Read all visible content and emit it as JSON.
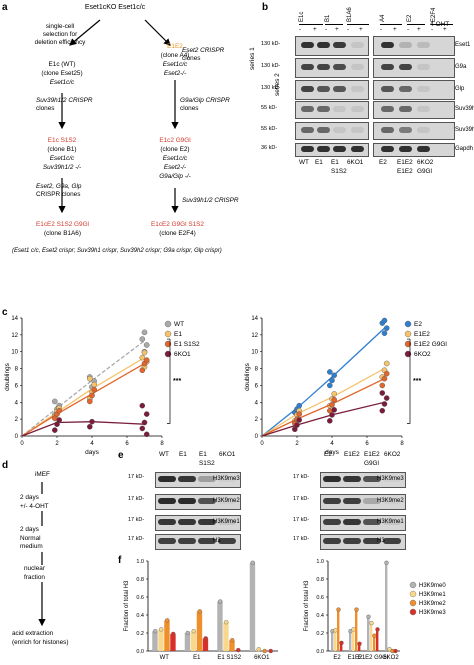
{
  "panels": {
    "a": "a",
    "b": "b",
    "c": "c",
    "d": "d",
    "e": "e",
    "f": "f"
  },
  "a": {
    "top_left": "Eset1cKO Eset1c/c",
    "single_cell": [
      "single-cell",
      "selection for",
      "deletion efficiency"
    ],
    "e1c": [
      "E1c (WT)",
      "(clone Eset25)",
      "Eset1c/c"
    ],
    "suv_crispr_1": [
      "Suv39h1/2 CRISPR",
      "clones"
    ],
    "e1c_s1s2": "E1c S1S2",
    "clone_b1": [
      "(clone B1)",
      "Eset1c/c",
      "Suv39h1/2 -/-"
    ],
    "eset2_crispr": [
      "Eset2, G9a, Glp",
      "CRISPR clones"
    ],
    "e1ce2s1s2g9gl_left": "E1cE2 S1S2 G9Gl",
    "clone_b1a6": "(clone B1A6)",
    "eset2_crispr_top": [
      "Eset2 CRISPR",
      "clones"
    ],
    "e1e2": "E1E2",
    "clone_a4": [
      "(clone A4)",
      "Eset1c/c",
      "Eset2-/-"
    ],
    "g9a_crispr": [
      "G9a/Glp CRISPR",
      "clones"
    ],
    "e1ce2_g9gl": "E1c2 G9Gl",
    "clone_e2": [
      "(clone E2)",
      "Eset1c/c",
      "Eset2-/-",
      "G9a/Glp -/-"
    ],
    "suv_crispr_2": "Suv39h1/2 CRISPR",
    "e1ce2g9gls1s2_right": "E1cE2 G9Gl S1S2",
    "clone_e2f4": "(clone E2F4)",
    "footer": "(Eset1 c/c, Eset2 crispr; Suv39h1 crispr, Suv39h2 crispr; G9a crispr, Glp crispr)",
    "series1": "series 1",
    "series2": "series 2"
  },
  "b": {
    "clone_headers": [
      "E1c",
      "B1",
      "B1A6",
      "A4",
      "E2",
      "E2F4"
    ],
    "oht_label": "4-OHT",
    "oht_marks": [
      "-",
      "+",
      "-",
      "+",
      "-",
      "+",
      "-",
      "+",
      "-",
      "+",
      "-",
      "+"
    ],
    "kd": [
      "130 kD-",
      "130 kD-",
      "130 kD-",
      "55 kD-",
      "55 kD-",
      "36 kD-"
    ],
    "proteins": [
      "Eset1",
      "G9a",
      "Glp",
      "Suv39h1",
      "Suv39h2",
      "Gapdh"
    ],
    "lanes_top": [
      "WT",
      "E1",
      "E1",
      "6KO1",
      "E2",
      "E1E2",
      "6KO2"
    ],
    "lanes_bottom": [
      "",
      "",
      "S1S2",
      "",
      "",
      "E1E2",
      "G9Gl"
    ]
  },
  "c": {
    "chart_data": [
      {
        "type": "scatter",
        "xlabel": "days",
        "ylabel": "doublings",
        "xlim": [
          0,
          8
        ],
        "ylim": [
          0,
          14
        ],
        "xticks": [
          0,
          2,
          4,
          6,
          8
        ],
        "yticks": [
          0,
          2,
          4,
          6,
          8,
          10,
          12,
          14
        ],
        "significance": "***",
        "series": [
          {
            "name": "WT",
            "color": "#aaaaaa",
            "dashed": true,
            "x": [
              0,
              2,
              4,
              7
            ],
            "mean": [
              0,
              3.3,
              6.6,
              11.3
            ],
            "points": [
              [
                2,
                2.5
              ],
              [
                2,
                3.2
              ],
              [
                2,
                3.6
              ],
              [
                2,
                4.1
              ],
              [
                4,
                5.8
              ],
              [
                4,
                6.5
              ],
              [
                4,
                7.0
              ],
              [
                7,
                10.0
              ],
              [
                7,
                10.8
              ],
              [
                7,
                11.5
              ],
              [
                7,
                12.3
              ]
            ]
          },
          {
            "name": "E1",
            "color": "#f6c36b",
            "dashed": false,
            "x": [
              0,
              2,
              4,
              7
            ],
            "mean": [
              0,
              2.8,
              5.6,
              9.3
            ],
            "points": [
              [
                2,
                2.3
              ],
              [
                2,
                2.9
              ],
              [
                2,
                3.3
              ],
              [
                4,
                4.4
              ],
              [
                4,
                5.2
              ],
              [
                4,
                6.1
              ],
              [
                4,
                6.8
              ],
              [
                7,
                8.2
              ],
              [
                7,
                8.8
              ],
              [
                7,
                9.3
              ],
              [
                7,
                9.9
              ]
            ]
          },
          {
            "name": "E1 S1S2",
            "color": "#e2662c",
            "dashed": false,
            "x": [
              0,
              2,
              4,
              7
            ],
            "mean": [
              0,
              2.6,
              5.0,
              8.6
            ],
            "points": [
              [
                2,
                2.1
              ],
              [
                2,
                2.6
              ],
              [
                2,
                3.0
              ],
              [
                4,
                4.1
              ],
              [
                4,
                4.8
              ],
              [
                4,
                5.5
              ],
              [
                7,
                7.8
              ],
              [
                7,
                8.6
              ],
              [
                7,
                9.0
              ]
            ]
          },
          {
            "name": "6KO1",
            "color": "#7a1c3a",
            "dashed": false,
            "x": [
              0,
              2,
              4,
              7
            ],
            "mean": [
              0,
              1.6,
              1.7,
              1.4
            ],
            "points": [
              [
                2,
                0.7
              ],
              [
                2,
                1.4
              ],
              [
                2,
                1.9
              ],
              [
                4,
                1.1
              ],
              [
                4,
                1.7
              ],
              [
                7,
                0.2
              ],
              [
                7,
                0.9
              ],
              [
                7,
                1.6
              ],
              [
                7,
                2.6
              ],
              [
                7,
                3.6
              ]
            ]
          }
        ]
      },
      {
        "type": "scatter",
        "xlabel": "days",
        "ylabel": "doublings",
        "xlim": [
          0,
          8
        ],
        "ylim": [
          0,
          14
        ],
        "xticks": [
          0,
          2,
          4,
          6,
          8
        ],
        "yticks": [
          0,
          2,
          4,
          6,
          8,
          10,
          12,
          14
        ],
        "significance": "***",
        "series": [
          {
            "name": "E2",
            "color": "#2f7fcf",
            "dashed": false,
            "x": [
              0,
              2,
              4,
              7
            ],
            "mean": [
              0,
              3.3,
              7.0,
              12.8
            ],
            "points": [
              [
                2,
                2.8
              ],
              [
                2,
                3.2
              ],
              [
                2,
                3.6
              ],
              [
                4,
                6.0
              ],
              [
                4,
                6.6
              ],
              [
                4,
                7.2
              ],
              [
                4,
                7.6
              ],
              [
                7,
                12.2
              ],
              [
                7,
                12.8
              ],
              [
                7,
                13.4
              ],
              [
                7,
                13.7
              ]
            ]
          },
          {
            "name": "E1E2",
            "color": "#f6c36b",
            "dashed": false,
            "x": [
              0,
              2,
              4,
              7
            ],
            "mean": [
              0,
              2.6,
              4.6,
              8.0
            ],
            "points": [
              [
                2,
                1.8
              ],
              [
                2,
                2.5
              ],
              [
                2,
                3.0
              ],
              [
                4,
                3.6
              ],
              [
                4,
                4.4
              ],
              [
                4,
                5.0
              ],
              [
                7,
                7.0
              ],
              [
                7,
                7.8
              ],
              [
                7,
                8.6
              ]
            ]
          },
          {
            "name": "E1E2 G9Gl",
            "color": "#e2662c",
            "dashed": false,
            "x": [
              0,
              2,
              4,
              7
            ],
            "mean": [
              0,
              2.0,
              3.8,
              6.8
            ],
            "points": [
              [
                2,
                1.5
              ],
              [
                2,
                2.0
              ],
              [
                2,
                2.6
              ],
              [
                4,
                3.0
              ],
              [
                4,
                3.7
              ],
              [
                4,
                4.3
              ],
              [
                7,
                6.0
              ],
              [
                7,
                6.8
              ],
              [
                7,
                7.4
              ]
            ]
          },
          {
            "name": "6KO2",
            "color": "#7a1c3a",
            "dashed": false,
            "x": [
              0,
              2,
              4,
              7
            ],
            "mean": [
              0,
              1.3,
              2.5,
              4.0
            ],
            "points": [
              [
                2,
                0.8
              ],
              [
                2,
                1.3
              ],
              [
                2,
                1.9
              ],
              [
                4,
                1.8
              ],
              [
                4,
                2.5
              ],
              [
                4,
                3.1
              ],
              [
                7,
                3.0
              ],
              [
                7,
                3.8
              ],
              [
                7,
                4.5
              ],
              [
                7,
                5.1
              ]
            ]
          }
        ]
      }
    ]
  },
  "d": {
    "steps": [
      "iMEF",
      "2 days\n+/- 4-OHT",
      "2 days\nNormal\nmedium",
      "nuclear\nfraction",
      "acid extraction\n(enrich for histones)"
    ]
  },
  "e": {
    "left_lanes": [
      "WT",
      "E1",
      "E1",
      "6KO1"
    ],
    "left_lanes2": [
      "",
      "",
      "S1S2",
      ""
    ],
    "right_lanes": [
      "E2",
      "E1E2",
      "E1E2",
      "6KO2"
    ],
    "right_lanes2": [
      "",
      "",
      "G9Gl",
      ""
    ],
    "kd": [
      "17 kD-",
      "17 kD-",
      "17 kD-",
      "17 kD-"
    ],
    "marks": [
      "H3K9me3",
      "H3K9me2",
      "H3K9me1",
      "H3"
    ]
  },
  "f": {
    "chart_data": [
      {
        "type": "bar",
        "ylabel": "Fraction of total H3",
        "ylim": [
          0,
          1
        ],
        "yticks": [
          "0.0",
          "0.2",
          "0.4",
          "0.6",
          "0.8",
          "1.0"
        ],
        "categories": [
          "WT",
          "E1",
          "E1 S1S2",
          "6KO1"
        ],
        "series": [
          {
            "name": "H3K9me0",
            "color": "#b3b3b3",
            "values": [
              0.22,
              0.2,
              0.55,
              0.98
            ]
          },
          {
            "name": "H3K9me1",
            "color": "#f9d88e",
            "values": [
              0.24,
              0.22,
              0.32,
              0.02
            ]
          },
          {
            "name": "H3K9me2",
            "color": "#ef8f2b",
            "values": [
              0.34,
              0.44,
              0.12,
              0.0
            ]
          },
          {
            "name": "H3K9me3",
            "color": "#d7302a",
            "values": [
              0.19,
              0.14,
              0.01,
              0.0
            ]
          }
        ]
      },
      {
        "type": "bar",
        "ylabel": "Fraction of total H3",
        "ylim": [
          0,
          1
        ],
        "yticks": [
          "0.0",
          "0.2",
          "0.4",
          "0.6",
          "0.8",
          "1.0"
        ],
        "categories": [
          "E2",
          "E1E2",
          "E1E2 G9Gl",
          "6KO2"
        ],
        "legend": "right",
        "series": [
          {
            "name": "H3K9me0",
            "color": "#b3b3b3",
            "values": [
              0.22,
              0.22,
              0.38,
              0.98
            ]
          },
          {
            "name": "H3K9me1",
            "color": "#f9d88e",
            "values": [
              0.23,
              0.24,
              0.31,
              0.02
            ]
          },
          {
            "name": "H3K9me2",
            "color": "#ef8f2b",
            "values": [
              0.46,
              0.46,
              0.17,
              0.0
            ]
          },
          {
            "name": "H3K9me3",
            "color": "#d7302a",
            "values": [
              0.09,
              0.08,
              0.24,
              0.0
            ]
          }
        ]
      }
    ]
  }
}
